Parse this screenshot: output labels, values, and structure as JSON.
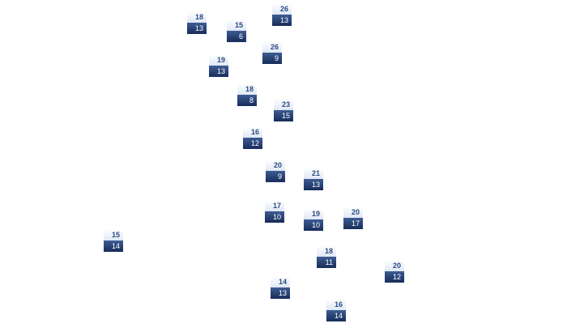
{
  "colors": {
    "high_text": "#2b4a82",
    "low_bg": "#1f3768",
    "high_bg": "#e4ecf8"
  },
  "stations": [
    {
      "high": "18",
      "low": "13"
    },
    {
      "high": "15",
      "low": "6"
    },
    {
      "high": "26",
      "low": "13"
    },
    {
      "high": "26",
      "low": "9"
    },
    {
      "high": "19",
      "low": "13"
    },
    {
      "high": "18",
      "low": "8"
    },
    {
      "high": "23",
      "low": "15"
    },
    {
      "high": "16",
      "low": "12"
    },
    {
      "high": "20",
      "low": "9"
    },
    {
      "high": "21",
      "low": "13"
    },
    {
      "high": "17",
      "low": "10"
    },
    {
      "high": "19",
      "low": "10"
    },
    {
      "high": "20",
      "low": "17"
    },
    {
      "high": "15",
      "low": "14"
    },
    {
      "high": "18",
      "low": "11"
    },
    {
      "high": "20",
      "low": "12"
    },
    {
      "high": "14",
      "low": "13"
    },
    {
      "high": "16",
      "low": "14"
    }
  ]
}
